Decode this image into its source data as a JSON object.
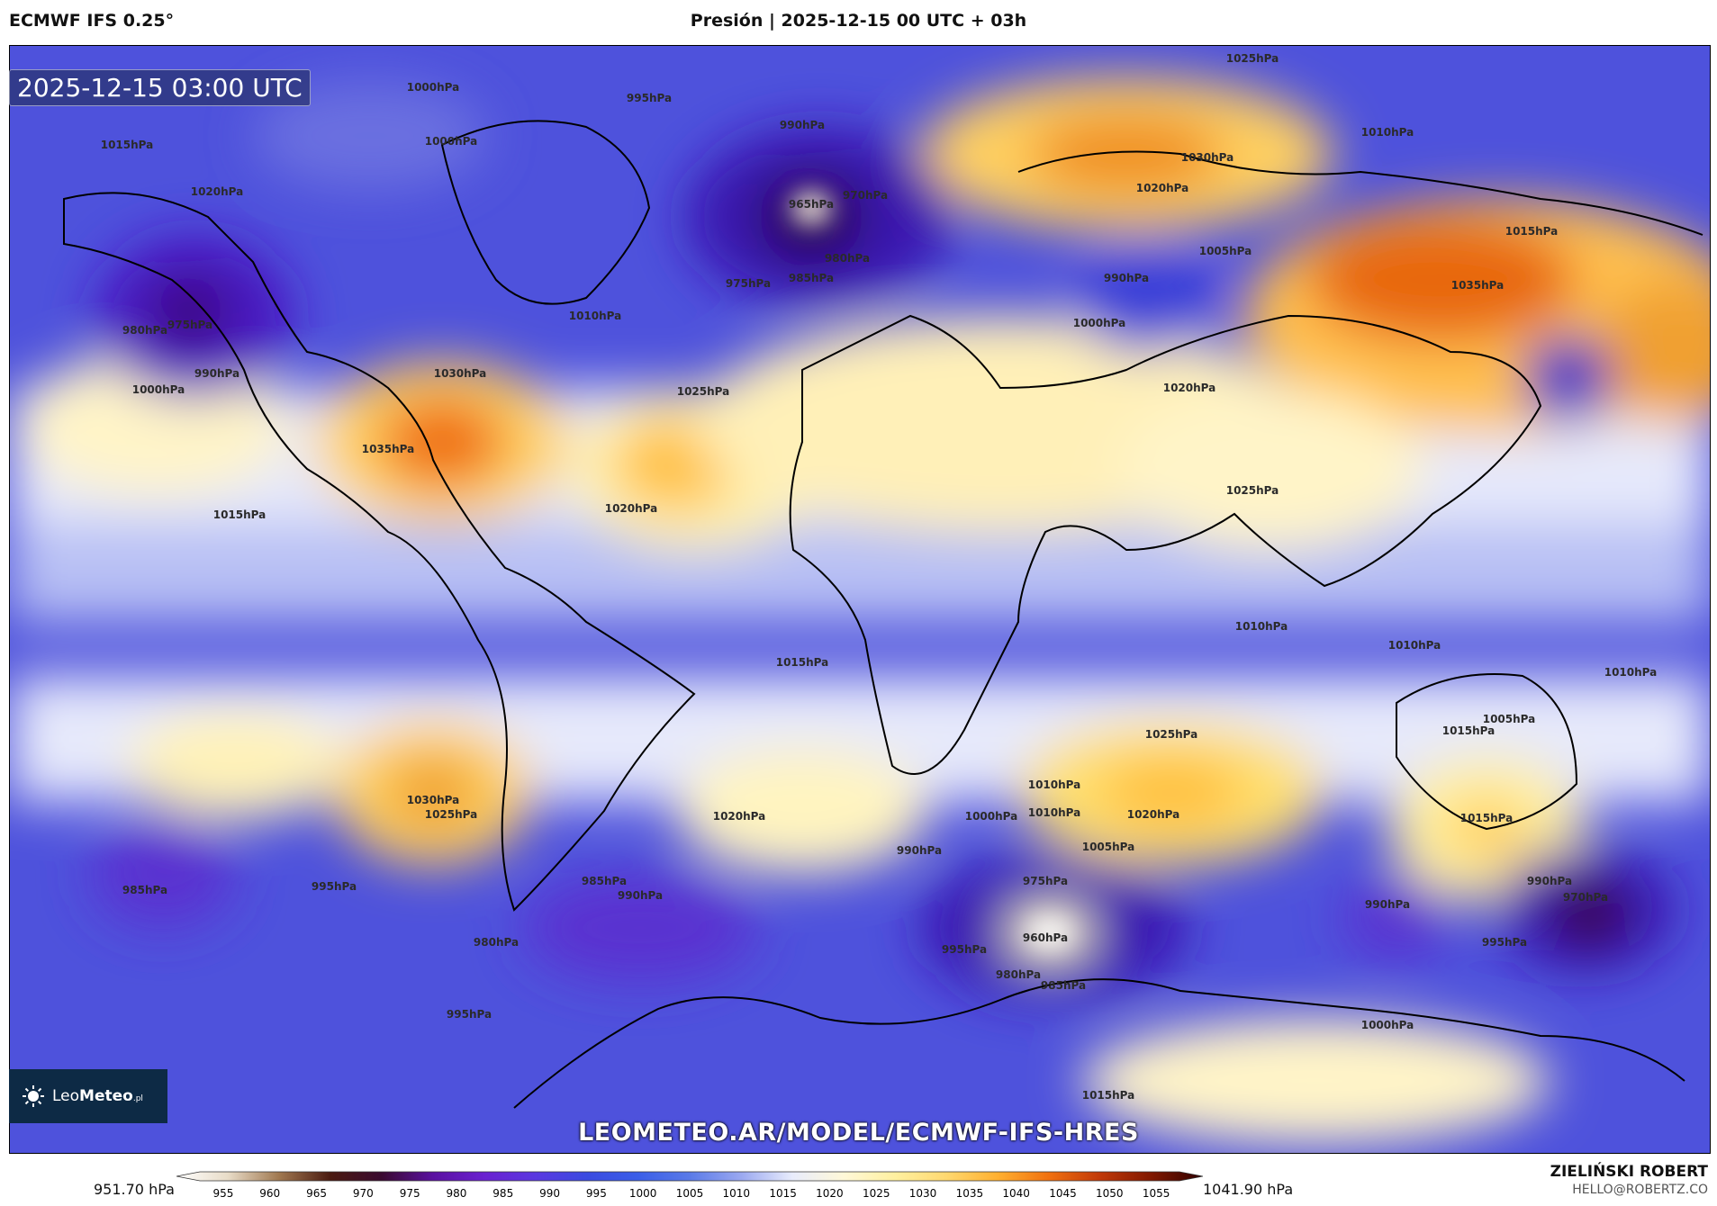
{
  "header": {
    "model": "ECMWF IFS 0.25°",
    "title": "Presión | 2025-12-15 00 UTC + 03h"
  },
  "timestamp_badge": "2025-12-15 03:00 UTC",
  "watermark_url": "LEOMETEO.AR/MODEL/ECMWF-IFS-HRES",
  "logo": {
    "text_light": "Leo",
    "text_bold": "Meteo",
    "suffix": ".pl"
  },
  "colorbar": {
    "min_label": "951.70 hPa",
    "max_label": "1041.90 hPa",
    "ticks": [
      "955",
      "960",
      "965",
      "970",
      "975",
      "980",
      "985",
      "990",
      "995",
      "1000",
      "1005",
      "1010",
      "1015",
      "1020",
      "1025",
      "1030",
      "1035",
      "1040",
      "1045",
      "1050",
      "1055"
    ],
    "colors": [
      "#ffffff",
      "#e8dcc8",
      "#a07850",
      "#4a1a10",
      "#3a0a30",
      "#5a10a0",
      "#6a20d0",
      "#5a38e0",
      "#3a4ae0",
      "#3a5ee8",
      "#5a7ae8",
      "#9aa8f0",
      "#e8ecfc",
      "#fff8d8",
      "#fff0a0",
      "#ffd870",
      "#ffb030",
      "#f07010",
      "#c03808",
      "#801800",
      "#300000"
    ]
  },
  "credit": {
    "name": "ZIELIŃSKI ROBERT",
    "email": "HELLO@ROBERTZ.CO"
  },
  "isobar_labels": [
    "1000hPa",
    "1000hPa",
    "995hPa",
    "990hPa",
    "965hPa",
    "970hPa",
    "980hPa",
    "975hPa",
    "985hPa",
    "1025hPa",
    "1015hPa",
    "1030hPa",
    "1020hPa",
    "1010hPa",
    "1005hPa",
    "990hPa",
    "1000hPa",
    "1035hPa",
    "1015hPa",
    "1020hPa",
    "975hPa",
    "980hPa",
    "990hPa",
    "1000hPa",
    "1010hPa",
    "1030hPa",
    "1035hPa",
    "1025hPa",
    "1020hPa",
    "1015hPa",
    "1025hPa",
    "1020hPa",
    "1010hPa",
    "1015hPa",
    "1025hPa",
    "1030hPa",
    "1025hPa",
    "1020hPa",
    "1020hPa",
    "1015hPa",
    "1000hPa",
    "1010hPa",
    "1005hPa",
    "975hPa",
    "960hPa",
    "980hPa",
    "985hPa",
    "990hPa",
    "990hPa",
    "995hPa",
    "985hPa",
    "980hPa",
    "970hPa",
    "990hPa",
    "995hPa",
    "995hPa",
    "985hPa",
    "990hPa",
    "1000hPa",
    "995hPa",
    "1015hPa",
    "1010hPa",
    "1010hPa",
    "1010hPa",
    "1005hPa",
    "1015hPa"
  ]
}
